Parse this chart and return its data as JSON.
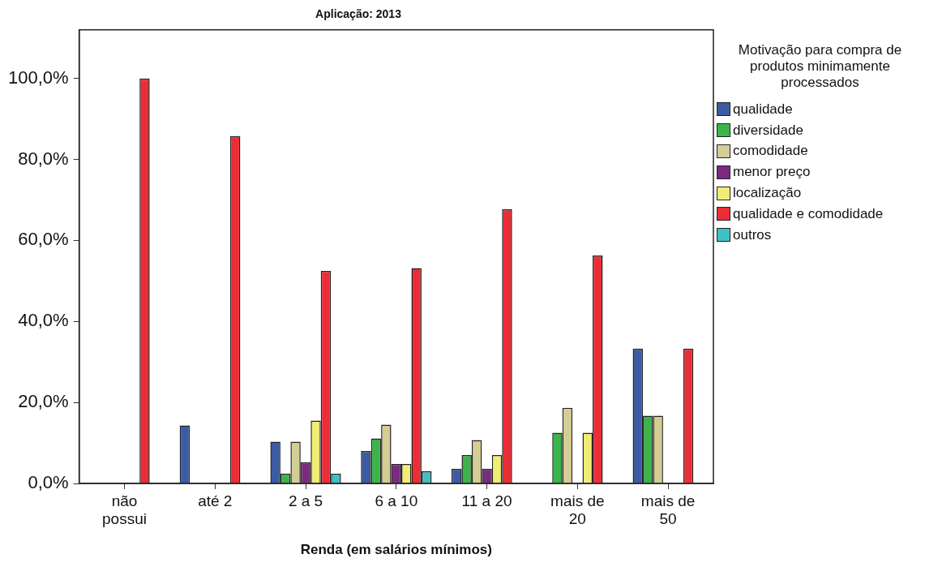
{
  "chart_data": {
    "type": "bar",
    "title": "Aplicação: 2013",
    "xlabel": "Renda (em salários mínimos)",
    "legend_title": "Motivação para compra de produtos minimamente processados",
    "categories": [
      "não possui",
      "até 2",
      "2 a 5",
      "6 a 10",
      "11 a 20",
      "mais de 20",
      "mais de 50"
    ],
    "series": [
      {
        "name": "qualidade",
        "color": "#3b5ba5",
        "values": [
          null,
          14.3,
          10.3,
          8.0,
          3.6,
          null,
          33.3
        ]
      },
      {
        "name": "diversidade",
        "color": "#3bb54a",
        "values": [
          null,
          null,
          2.4,
          11.1,
          7.0,
          12.5,
          16.7
        ]
      },
      {
        "name": "comodidade",
        "color": "#d4cd94",
        "values": [
          null,
          null,
          10.3,
          14.5,
          10.7,
          18.7,
          16.7
        ]
      },
      {
        "name": "menor preço",
        "color": "#7b2a7f",
        "values": [
          null,
          null,
          5.2,
          4.8,
          3.6,
          null,
          null
        ]
      },
      {
        "name": "localização",
        "color": "#f0ec74",
        "values": [
          null,
          null,
          15.5,
          4.8,
          7.0,
          12.5,
          null
        ]
      },
      {
        "name": "qualidade e comodidade",
        "color": "#ed2d36",
        "values": [
          100,
          85.7,
          52.5,
          53.2,
          67.7,
          56.3,
          33.3
        ]
      },
      {
        "name": "outros",
        "color": "#3fc0c5",
        "values": [
          null,
          null,
          2.4,
          3.0,
          null,
          null,
          null
        ]
      }
    ],
    "ylim": [
      0,
      112
    ],
    "yticks": [
      {
        "value": 0,
        "label": "0,0%"
      },
      {
        "value": 20,
        "label": "20,0%"
      },
      {
        "value": 40,
        "label": "40,0%"
      },
      {
        "value": 60,
        "label": "60,0%"
      },
      {
        "value": 80,
        "label": "80,0%"
      },
      {
        "value": 100,
        "label": "100,0%"
      }
    ],
    "grid": false,
    "legend": "right"
  }
}
